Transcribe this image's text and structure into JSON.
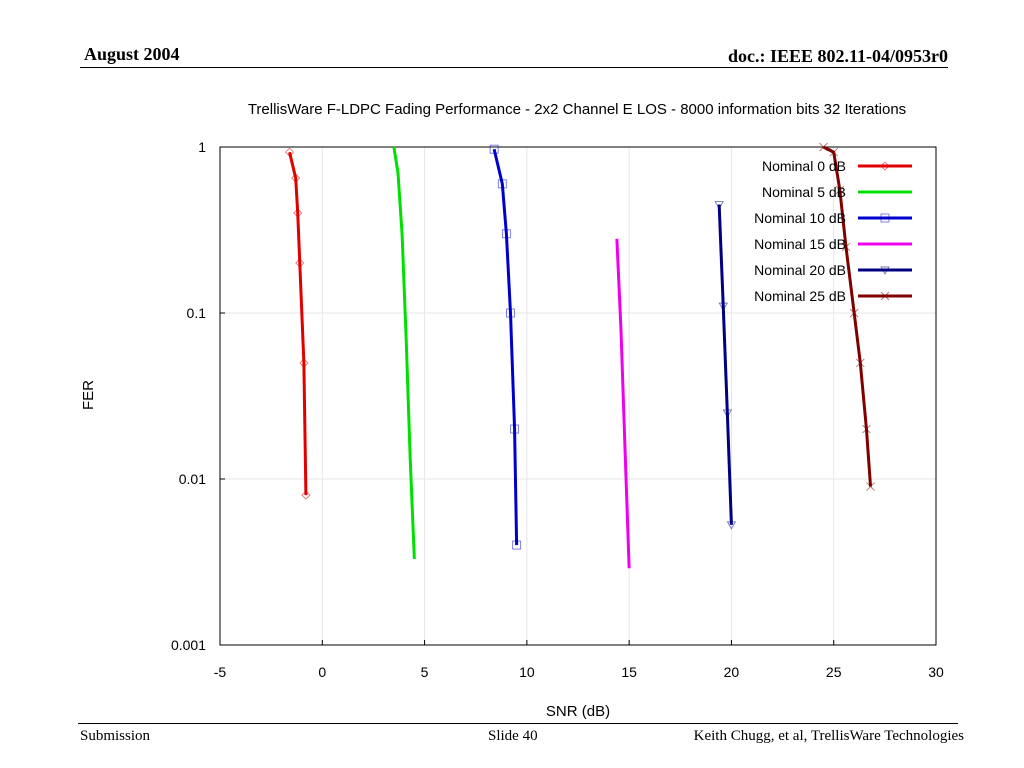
{
  "header": {
    "date": "August 2004",
    "doc_id": "doc.: IEEE 802.11-04/0953r0"
  },
  "footer": {
    "left": "Submission",
    "center": "Slide 40",
    "right": "Keith Chugg, et al, TrellisWare Technologies"
  },
  "chart_data": {
    "type": "line",
    "title": "TrellisWare F-LDPC Fading Performance - 2x2 Channel E LOS - 8000 information bits 32 Iterations",
    "xlabel": "SNR (dB)",
    "ylabel": "FER",
    "xlim": [
      -5,
      30
    ],
    "ylim": [
      0.001,
      1
    ],
    "yscale": "log",
    "xticks": [
      -5,
      0,
      5,
      10,
      15,
      20,
      25,
      30
    ],
    "yticks": [
      {
        "value": 1,
        "label": "1"
      },
      {
        "value": 0.1,
        "label": "0.1"
      },
      {
        "value": 0.01,
        "label": "0.01"
      },
      {
        "value": 0.001,
        "label": "0.001"
      }
    ],
    "grid": true,
    "legend_position": "top-right",
    "series": [
      {
        "name": "Nominal 0 dB",
        "color": "#e00000",
        "marker": "diamond",
        "x": [
          -1.6,
          -1.3,
          -1.2,
          -1.1,
          -0.9,
          -0.8
        ],
        "y": [
          0.93,
          0.65,
          0.4,
          0.2,
          0.05,
          0.008
        ]
      },
      {
        "name": "Nominal 5 dB",
        "color": "#00e000",
        "marker": "none",
        "x": [
          3.5,
          3.7,
          3.9,
          4.1,
          4.3,
          4.5
        ],
        "y": [
          1.0,
          0.7,
          0.3,
          0.07,
          0.013,
          0.0033
        ]
      },
      {
        "name": "Nominal 10 dB",
        "color": "#0000cc",
        "marker": "square",
        "x": [
          8.4,
          8.8,
          9.0,
          9.2,
          9.4,
          9.5
        ],
        "y": [
          0.97,
          0.6,
          0.3,
          0.1,
          0.02,
          0.004
        ]
      },
      {
        "name": "Nominal 15 dB",
        "color": "#ee00ee",
        "marker": "none",
        "x": [
          14.4,
          14.6,
          14.8,
          15.0
        ],
        "y": [
          0.28,
          0.08,
          0.015,
          0.0029
        ]
      },
      {
        "name": "Nominal 20 dB",
        "color": "#000080",
        "marker": "triangle",
        "x": [
          19.4,
          19.6,
          19.8,
          20.0
        ],
        "y": [
          0.45,
          0.11,
          0.025,
          0.0053
        ]
      },
      {
        "name": "Nominal 25 dB",
        "color": "#800000",
        "marker": "star",
        "x": [
          24.5,
          25.0,
          25.3,
          25.6,
          26.0,
          26.3,
          26.6,
          26.8
        ],
        "y": [
          1.0,
          0.93,
          0.55,
          0.25,
          0.1,
          0.05,
          0.02,
          0.009
        ]
      }
    ]
  }
}
